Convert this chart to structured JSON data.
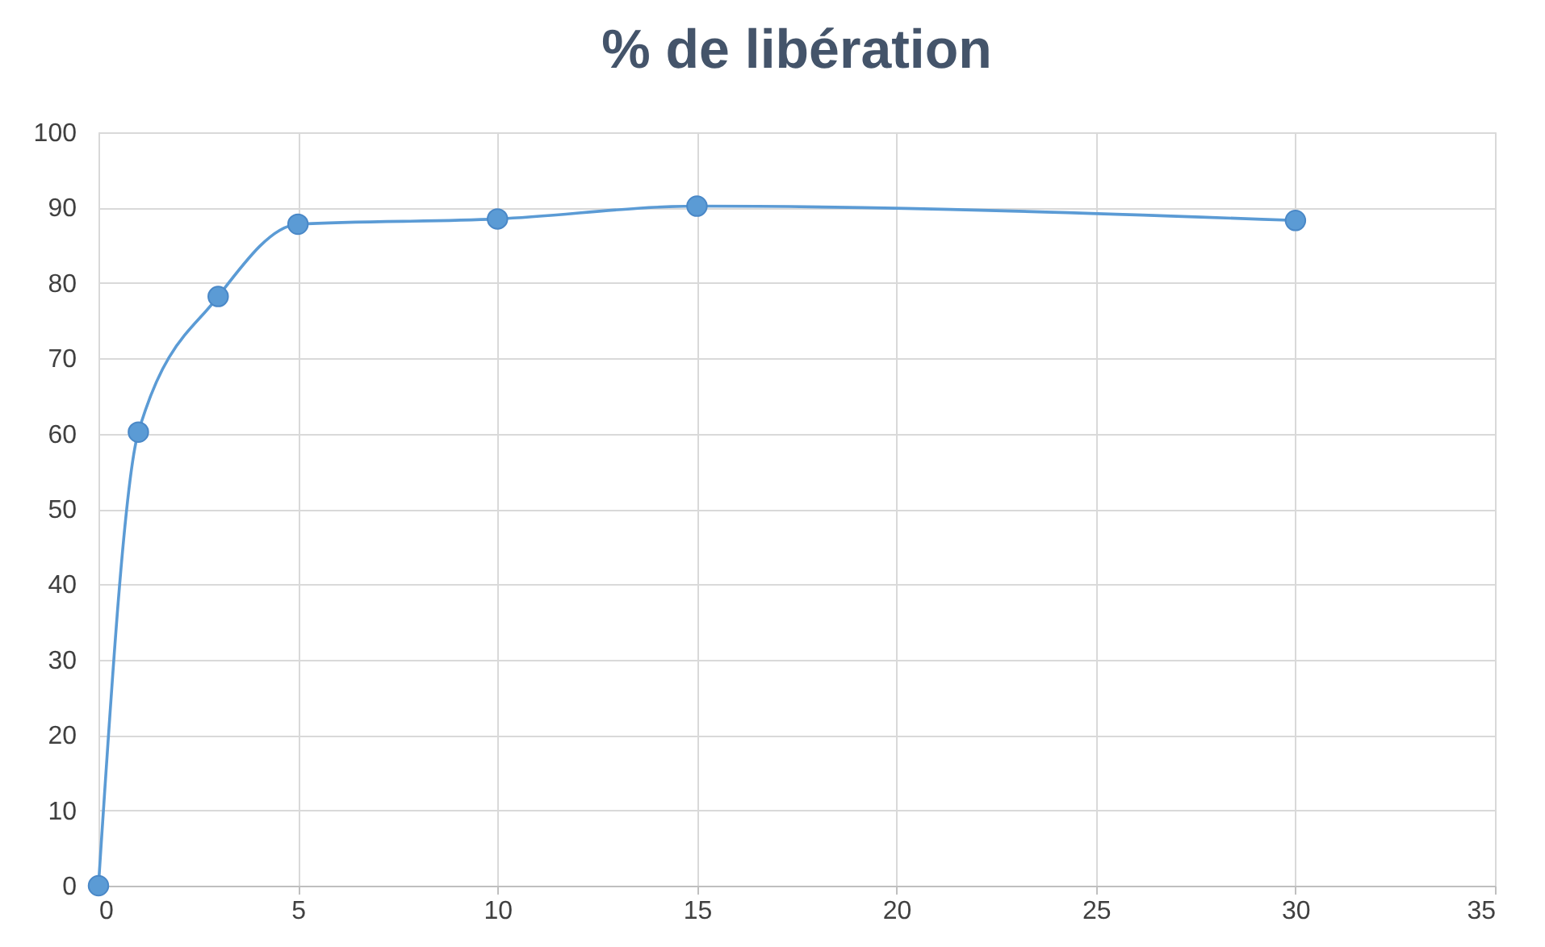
{
  "chart_data": {
    "type": "line",
    "title": "% de libération",
    "x": [
      0,
      1,
      3,
      5,
      10,
      15,
      30
    ],
    "series": [
      {
        "color": "#5b9bd5",
        "values": [
          0,
          60.2,
          78.2,
          87.8,
          88.5,
          90.2,
          88.3
        ]
      }
    ],
    "xlim": [
      0,
      35
    ],
    "xticks": [
      0,
      5,
      10,
      15,
      20,
      25,
      30,
      35
    ],
    "ylim": [
      0,
      100
    ],
    "yticks": [
      0,
      10,
      20,
      30,
      40,
      50,
      60,
      70,
      80,
      90,
      100
    ],
    "grid": true,
    "marker": "circle",
    "line_style": "solid"
  }
}
